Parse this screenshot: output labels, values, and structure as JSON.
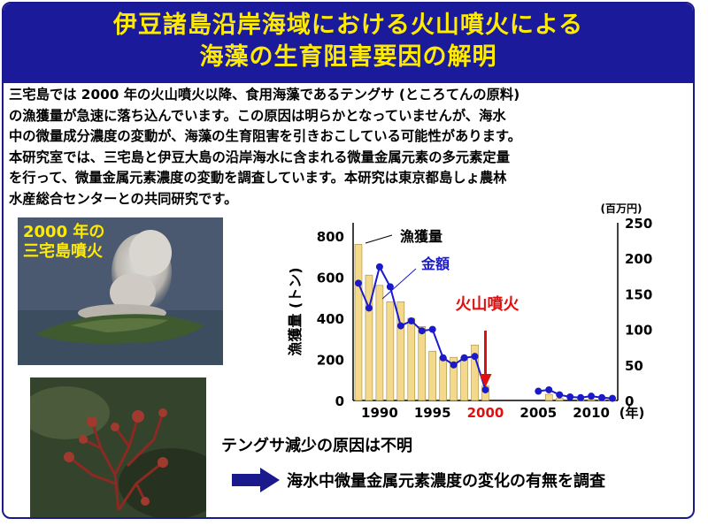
{
  "header": {
    "title_line1": "伊豆諸島沿岸海域における火山噴火による",
    "title_line2": "海藻の生育阻害要因の解明"
  },
  "intro": {
    "lines": [
      "三宅島では 2000 年の火山噴火以降、食用海藻であるテングサ (ところてんの原料)",
      "の漁獲量が急速に落ち込んでいます。この原因は明らかとなっていませんが、海水",
      "中の微量成分濃度の変動が、海藻の生育阻害を引きおこしている可能性があります。",
      "本研究室では、三宅島と伊豆大島の沿岸海水に含まれる微量金属元素の多元素定量",
      "を行って、微量金属元素濃度の変動を調査しています。本研究は東京都島しょ農林",
      "水産総合センターとの共同研究です。"
    ]
  },
  "photo1": {
    "caption_line1": "2000 年の",
    "caption_line2": "三宅島噴火"
  },
  "chart_data": {
    "type": "bar+line",
    "ylabel_left": "漁獲量 (トン)",
    "ylabel_right_unit": "(百万円)",
    "x_unit": "(年)",
    "left_ylim": [
      0,
      800
    ],
    "right_ylim": [
      0,
      250
    ],
    "left_ticks": [
      "800",
      "600",
      "400",
      "200",
      "0"
    ],
    "right_ticks": [
      "250",
      "200",
      "150",
      "100",
      "50",
      "0"
    ],
    "x_ticks": [
      "1990",
      "1995",
      "2000",
      "2005",
      "2010"
    ],
    "highlight_year": "2000",
    "series": [
      {
        "name": "漁獲量",
        "type": "bar",
        "axis": "left",
        "color": "#f5d98a",
        "x": [
          1988,
          1989,
          1990,
          1991,
          1992,
          1993,
          1994,
          1995,
          1996,
          1997,
          1998,
          1999,
          2000,
          2001,
          2002,
          2003,
          2004,
          2005,
          2006,
          2007,
          2008,
          2009,
          2010,
          2011,
          2012
        ],
        "values": [
          760,
          610,
          560,
          480,
          480,
          400,
          360,
          240,
          210,
          210,
          210,
          270,
          70,
          0,
          0,
          0,
          0,
          0,
          30,
          10,
          0,
          5,
          5,
          5,
          5
        ]
      },
      {
        "name": "金額",
        "type": "line",
        "axis": "right",
        "color": "#1a1acc",
        "x": [
          1988,
          1989,
          1990,
          1991,
          1992,
          1993,
          1994,
          1995,
          1996,
          1997,
          1998,
          1999,
          2000,
          2001,
          2002,
          2003,
          2004,
          2005,
          2006,
          2007,
          2008,
          2009,
          2010,
          2011,
          2012
        ],
        "values": [
          165,
          130,
          188,
          160,
          105,
          112,
          98,
          100,
          60,
          50,
          60,
          62,
          15,
          null,
          null,
          null,
          null,
          13,
          15,
          8,
          5,
          4,
          6,
          4,
          3
        ]
      }
    ],
    "annotations": {
      "eruption": "火山噴火"
    }
  },
  "notes": {
    "line1": "テングサ減少の原因は不明",
    "line2": "海水中微量金属元素濃度の変化の有無を調査"
  },
  "colors": {
    "header_bg": "#1a1a9a",
    "header_text": "#ffeb00",
    "eruption": "#e01010"
  }
}
